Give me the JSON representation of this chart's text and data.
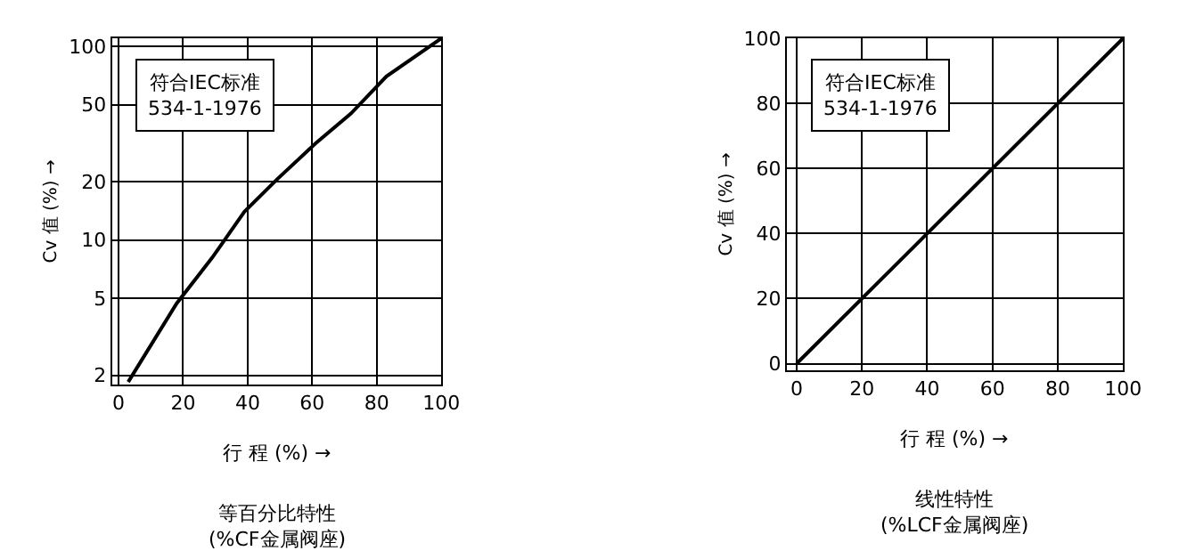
{
  "chart_data": [
    {
      "type": "line",
      "title": "等百分比特性\n(%CF金属阀座)",
      "xlabel": "行 程 (%) →",
      "ylabel": "Cv 值 (%) →",
      "annotations": [
        "符合IEC标准\n534-1-1976"
      ],
      "x": [
        3,
        18,
        29,
        39,
        49,
        61,
        72,
        83,
        100
      ],
      "series": [
        {
          "color": "#000000",
          "values": [
            1.85,
            4.7,
            8.1,
            14,
            20.5,
            31.5,
            45,
            70,
            110
          ]
        }
      ],
      "log": true,
      "xlim": [
        -2,
        100
      ],
      "ylim": [
        1.8,
        110
      ],
      "xticks": [
        0,
        20,
        40,
        60,
        80,
        100
      ],
      "yticks": [
        2,
        5,
        10,
        20,
        50,
        100
      ],
      "grid": true,
      "marker": "none",
      "line_style": "solid"
    },
    {
      "type": "line",
      "title": "线性特性\n(%LCF金属阀座)",
      "xlabel": "行 程 (%) →",
      "ylabel": "Cv 值 (%) →",
      "annotations": [
        "符合IEC标准\n534-1-1976"
      ],
      "x": [
        0,
        100
      ],
      "series": [
        {
          "color": "#000000",
          "values": [
            0,
            100
          ]
        }
      ],
      "xlim": [
        -3,
        100
      ],
      "ylim": [
        -2,
        100
      ],
      "xticks": [
        0,
        20,
        40,
        60,
        80,
        100
      ],
      "yticks": [
        0,
        20,
        40,
        60,
        80,
        100
      ],
      "grid": true,
      "marker": "none",
      "line_style": "solid"
    }
  ]
}
